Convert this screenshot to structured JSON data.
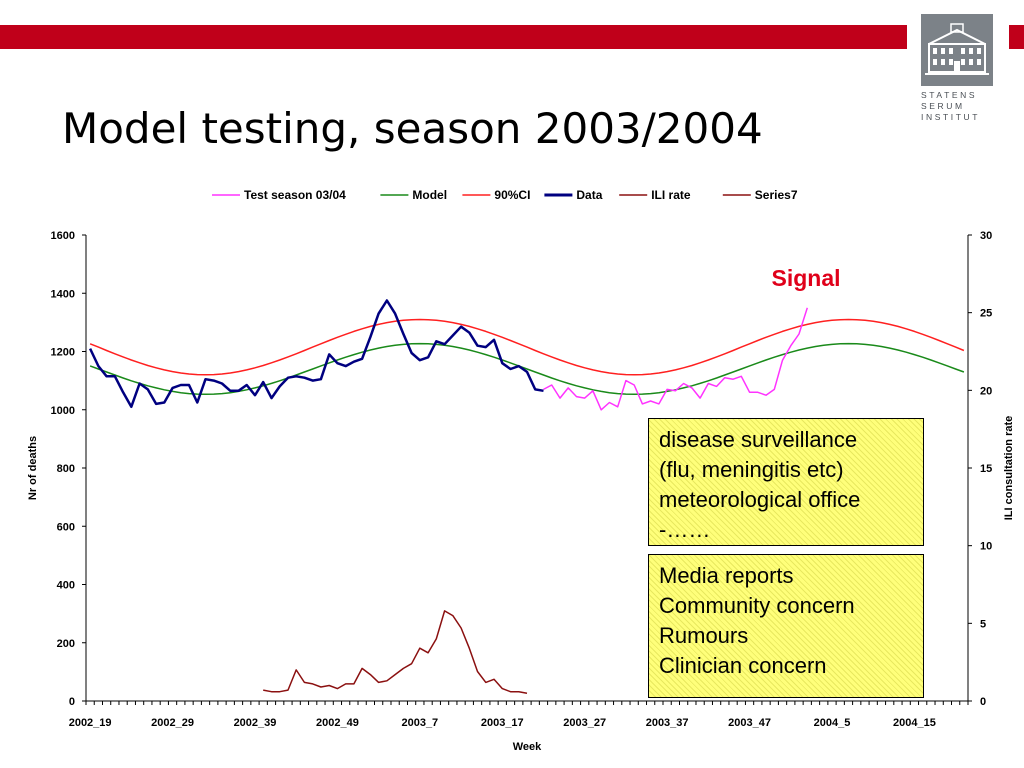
{
  "slide": {
    "title": "Model testing, season 2003/2004",
    "logo_lines": [
      "STATENS",
      "SERUM",
      "INSTITUT"
    ]
  },
  "annotations": {
    "signal_label": "Signal",
    "box1_lines": [
      "disease surveillance",
      "(flu, meningitis etc)",
      "meteorological office",
      "-……"
    ],
    "box2_lines": [
      "Media reports",
      "Community concern",
      "Rumours",
      "Clinician concern"
    ]
  },
  "colors": {
    "brand_red": "#c0001a",
    "test": "#ff33ff",
    "model": "#1a8a1a",
    "ci": "#ff2020",
    "data": "#000080",
    "ili": "#8b1010",
    "signal": "#e0001a",
    "note_fill": "#ffff7a"
  },
  "chart_data": {
    "type": "line",
    "xlabel": "Week",
    "ylabel": "Nr of deaths",
    "y2label": "ILI consultation rate",
    "ylim": [
      0,
      1600
    ],
    "y2lim": [
      0,
      30
    ],
    "yticks": [
      0,
      200,
      400,
      600,
      800,
      1000,
      1200,
      1400,
      1600
    ],
    "y2ticks": [
      0,
      5,
      10,
      15,
      20,
      25,
      30
    ],
    "x_tick_labels": [
      "2002_19",
      "2002_29",
      "2002_39",
      "2002_49",
      "2003_7",
      "2003_17",
      "2003_27",
      "2003_37",
      "2003_47",
      "2004_5",
      "2004_15"
    ],
    "legend": [
      "Test season 03/04",
      "Model",
      "90%CI",
      "Data",
      "ILI rate",
      "Series7"
    ],
    "legend_placement": "top",
    "series": [
      {
        "name": "Test season 03/04",
        "axis": "left",
        "start_index": 55,
        "values": [
          1070,
          1085,
          1040,
          1075,
          1045,
          1040,
          1065,
          1000,
          1025,
          1010,
          1100,
          1085,
          1020,
          1030,
          1020,
          1070,
          1065,
          1090,
          1075,
          1040,
          1090,
          1080,
          1110,
          1105,
          1115,
          1060,
          1060,
          1050,
          1070,
          1170,
          1220,
          1260,
          1350
        ]
      },
      {
        "name": "Model",
        "axis": "left",
        "start_index": 0,
        "wave": {
          "mean": 1140,
          "amplitude": 87,
          "period": 52,
          "peak_index": 40,
          "count": 107
        }
      },
      {
        "name": "90%CI",
        "axis": "left",
        "start_index": 0,
        "wave": {
          "mean": 1215,
          "amplitude": 95,
          "period": 52,
          "peak_index": 40,
          "count": 107
        }
      },
      {
        "name": "Data",
        "axis": "left",
        "start_index": 0,
        "values": [
          1210,
          1150,
          1115,
          1115,
          1060,
          1010,
          1090,
          1070,
          1020,
          1025,
          1075,
          1085,
          1085,
          1025,
          1105,
          1100,
          1090,
          1065,
          1065,
          1085,
          1050,
          1095,
          1040,
          1080,
          1110,
          1115,
          1110,
          1100,
          1105,
          1190,
          1160,
          1150,
          1165,
          1175,
          1250,
          1330,
          1375,
          1330,
          1260,
          1195,
          1170,
          1180,
          1235,
          1225,
          1255,
          1285,
          1265,
          1220,
          1215,
          1240,
          1160,
          1140,
          1150,
          1130,
          1070,
          1065
        ]
      },
      {
        "name": "ILI rate",
        "axis": "right",
        "start_index": 21,
        "values": [
          0.7,
          0.6,
          0.6,
          0.7,
          2.0,
          1.2,
          1.1,
          0.9,
          1.0,
          0.8,
          1.1,
          1.1,
          2.1,
          1.7,
          1.2,
          1.3,
          1.7,
          2.1,
          2.4,
          3.4,
          3.1,
          4.0,
          5.8,
          5.5,
          4.7,
          3.4,
          1.9,
          1.2,
          1.4,
          0.8,
          0.6,
          0.6,
          0.5
        ]
      },
      {
        "name": "Series7",
        "axis": "right",
        "values": []
      }
    ]
  }
}
